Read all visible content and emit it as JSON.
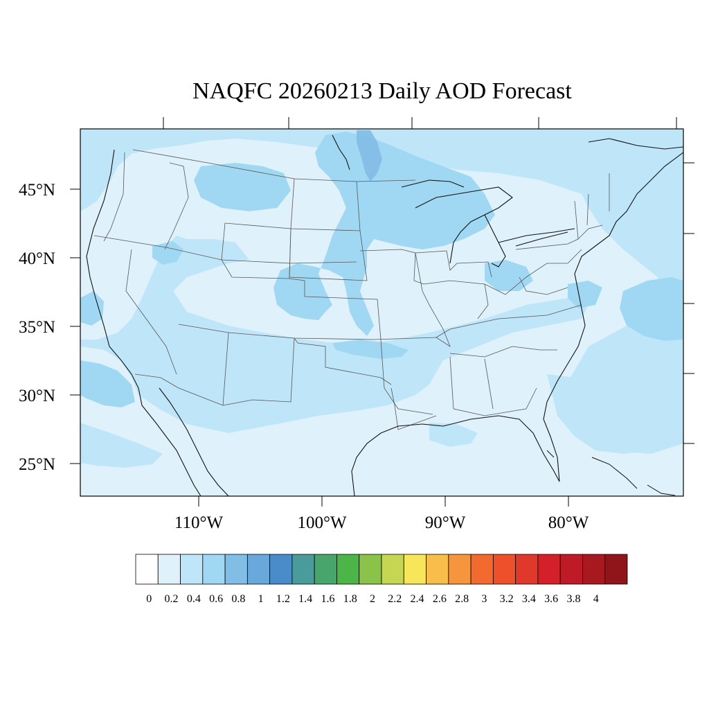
{
  "title": "NAQFC 20260213 Daily AOD Forecast",
  "map": {
    "lat_labels": [
      "45°N",
      "40°N",
      "35°N",
      "30°N",
      "25°N"
    ],
    "lon_labels": [
      "110°W",
      "100°W",
      "90°W",
      "80°W"
    ],
    "background_color": "#dff1fb"
  },
  "colorbar": {
    "labels": [
      "0",
      "0.2",
      "0.4",
      "0.6",
      "0.8",
      "1",
      "1.2",
      "1.4",
      "1.6",
      "1.8",
      "2",
      "2.2",
      "2.4",
      "2.6",
      "2.8",
      "3",
      "3.2",
      "3.4",
      "3.6",
      "3.8",
      "4"
    ],
    "colors": [
      "#ffffff",
      "#dff1fb",
      "#bfe6f8",
      "#a0d8f3",
      "#82bde6",
      "#69a8db",
      "#4a8bc9",
      "#4a9b9c",
      "#48a66c",
      "#4cb547",
      "#8bc34a",
      "#c5d653",
      "#f7e65a",
      "#f7be4a",
      "#f5963e",
      "#f26a2e",
      "#ee5129",
      "#e0382a",
      "#d42129",
      "#be1b26",
      "#a8181f",
      "#8f151b"
    ]
  }
}
